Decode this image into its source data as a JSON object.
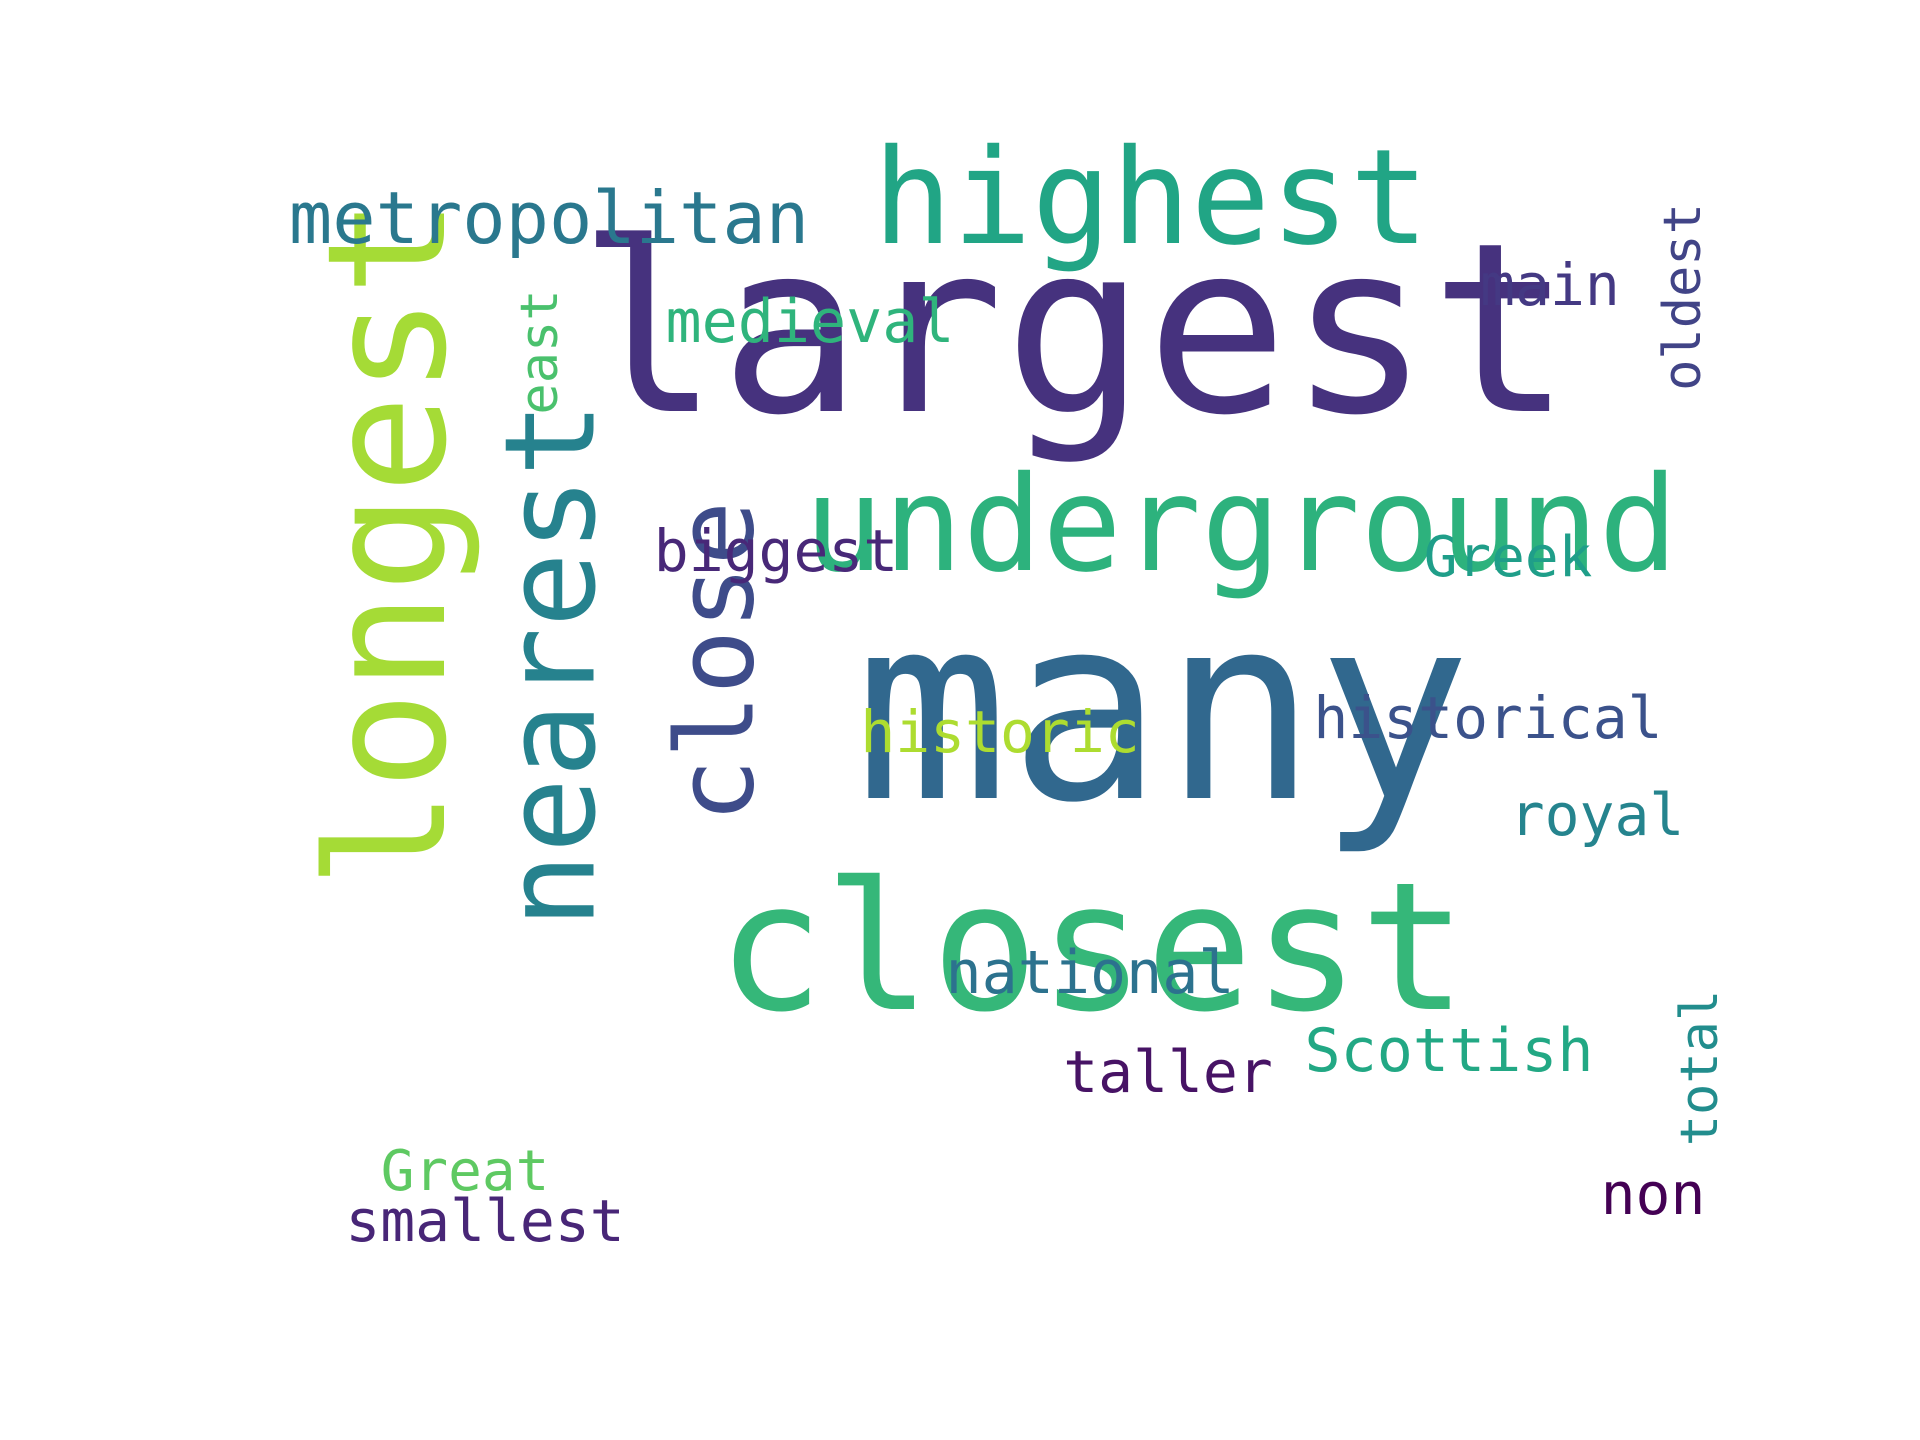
{
  "words": [
    {
      "key": "w_largest",
      "text": "largest",
      "color": "#46327e",
      "orientation": "horizontal"
    },
    {
      "key": "w_many",
      "text": "many",
      "color": "#31688e",
      "orientation": "horizontal"
    },
    {
      "key": "w_closest",
      "text": "closest",
      "color": "#35b779",
      "orientation": "horizontal"
    },
    {
      "key": "w_underground",
      "text": "underground",
      "color": "#2db27d",
      "orientation": "horizontal"
    },
    {
      "key": "w_highest",
      "text": "highest",
      "color": "#21a585",
      "orientation": "horizontal"
    },
    {
      "key": "w_longest",
      "text": "longest",
      "color": "#a5db36",
      "orientation": "vertical"
    },
    {
      "key": "w_nearest",
      "text": "nearest",
      "color": "#26828e",
      "orientation": "vertical"
    },
    {
      "key": "w_close",
      "text": "close",
      "color": "#3e4c8a",
      "orientation": "vertical"
    },
    {
      "key": "w_metropolitan",
      "text": "metropolitan",
      "color": "#2a788e",
      "orientation": "horizontal"
    },
    {
      "key": "w_medieval",
      "text": "medieval",
      "color": "#2fb47c",
      "orientation": "horizontal"
    },
    {
      "key": "w_main",
      "text": "main",
      "color": "#443983",
      "orientation": "horizontal"
    },
    {
      "key": "w_oldest",
      "text": "oldest",
      "color": "#414487",
      "orientation": "vertical"
    },
    {
      "key": "w_east",
      "text": "east",
      "color": "#4ac16d",
      "orientation": "vertical"
    },
    {
      "key": "w_biggest",
      "text": "biggest",
      "color": "#482878",
      "orientation": "horizontal"
    },
    {
      "key": "w_greek",
      "text": "Greek",
      "color": "#1f9e89",
      "orientation": "horizontal"
    },
    {
      "key": "w_historical",
      "text": "historical",
      "color": "#3b528b",
      "orientation": "horizontal"
    },
    {
      "key": "w_historic",
      "text": "historic",
      "color": "#addc30",
      "orientation": "horizontal"
    },
    {
      "key": "w_royal",
      "text": "royal",
      "color": "#25848e",
      "orientation": "horizontal"
    },
    {
      "key": "w_national",
      "text": "national",
      "color": "#2c728e",
      "orientation": "horizontal"
    },
    {
      "key": "w_scottish",
      "text": "Scottish",
      "color": "#22a884",
      "orientation": "horizontal"
    },
    {
      "key": "w_taller",
      "text": "taller",
      "color": "#471365",
      "orientation": "horizontal"
    },
    {
      "key": "w_total",
      "text": "total",
      "color": "#228d8d",
      "orientation": "vertical"
    },
    {
      "key": "w_great",
      "text": "Great",
      "color": "#5ec962",
      "orientation": "horizontal"
    },
    {
      "key": "w_non",
      "text": "non",
      "color": "#440154",
      "orientation": "horizontal"
    },
    {
      "key": "w_smallest",
      "text": "smallest",
      "color": "#482677",
      "orientation": "horizontal"
    }
  ],
  "background_color": "#ffffff"
}
